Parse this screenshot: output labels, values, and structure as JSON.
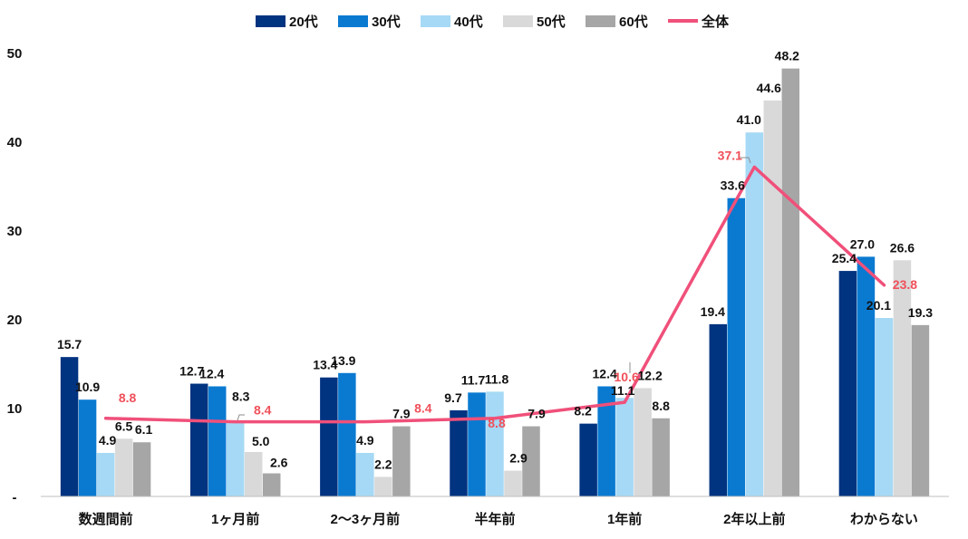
{
  "chart_data": {
    "type": "bar",
    "title": "",
    "xlabel": "",
    "ylabel": "",
    "ylim": [
      0,
      50
    ],
    "yticks": [
      {
        "value": 0,
        "label": "-"
      },
      {
        "value": 10,
        "label": "10"
      },
      {
        "value": 20,
        "label": "20"
      },
      {
        "value": 30,
        "label": "30"
      },
      {
        "value": 40,
        "label": "40"
      },
      {
        "value": 50,
        "label": "50"
      }
    ],
    "categories": [
      "数週間前",
      "1ヶ月前",
      "2〜3ヶ月前",
      "半年前",
      "1年前",
      "2年以上前",
      "わからない"
    ],
    "series": [
      {
        "name": "20代",
        "color": "#003380",
        "values": [
          15.7,
          12.7,
          13.4,
          9.7,
          8.2,
          19.4,
          25.4
        ]
      },
      {
        "name": "30代",
        "color": "#0a7ad1",
        "values": [
          10.9,
          12.4,
          13.9,
          11.7,
          12.4,
          33.6,
          27.0
        ]
      },
      {
        "name": "40代",
        "color": "#a6d9f5",
        "values": [
          4.9,
          8.3,
          4.9,
          11.8,
          11.1,
          41.0,
          20.1
        ]
      },
      {
        "name": "50代",
        "color": "#d9d9d9",
        "values": [
          6.5,
          5.0,
          2.2,
          2.9,
          12.2,
          44.6,
          26.6
        ]
      },
      {
        "name": "60代",
        "color": "#a6a6a6",
        "values": [
          6.1,
          2.6,
          7.9,
          7.9,
          8.8,
          48.2,
          19.3
        ]
      }
    ],
    "line": {
      "name": "全体",
      "color": "#f0507a",
      "label_color": "#f0505a",
      "values": [
        8.8,
        8.4,
        8.4,
        8.8,
        10.6,
        37.1,
        23.8
      ]
    },
    "legend": "top-center"
  }
}
